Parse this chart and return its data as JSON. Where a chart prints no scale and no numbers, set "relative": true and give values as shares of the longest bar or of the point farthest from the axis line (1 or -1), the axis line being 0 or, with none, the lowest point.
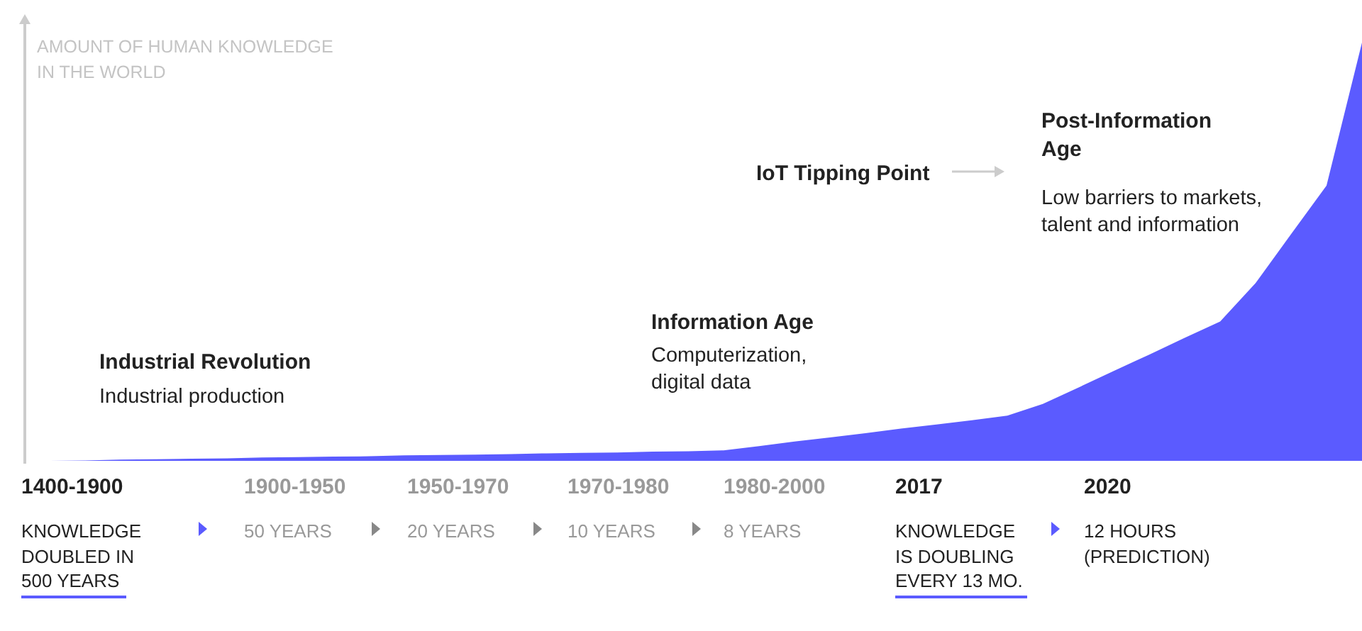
{
  "chart_data": {
    "type": "area",
    "relative": true,
    "ylabel": "AMOUNT OF HUMAN KNOWLEDGE IN THE WORLD",
    "color": "#5b5bff",
    "categories": [
      null,
      null,
      null,
      null,
      null,
      null,
      null,
      null,
      null,
      null,
      null,
      null,
      null,
      null,
      null,
      null,
      null,
      null,
      null,
      null,
      null,
      null,
      null,
      null,
      null,
      null,
      null,
      null,
      null,
      null,
      null,
      null,
      null,
      null,
      null,
      null,
      null,
      null
    ],
    "values": [
      0,
      0.001,
      0.003,
      0.004,
      0.005,
      0.006,
      0.008,
      0.009,
      0.01,
      0.011,
      0.013,
      0.014,
      0.015,
      0.016,
      0.018,
      0.019,
      0.02,
      0.022,
      0.023,
      0.025,
      0.035,
      0.046,
      0.056,
      0.066,
      0.077,
      0.087,
      0.097,
      0.108,
      0.136,
      0.175,
      0.215,
      0.254,
      0.294,
      0.333,
      0.425,
      0.542,
      0.658,
      1
    ],
    "annotations": [
      "Industrial Revolution",
      "Industrial production",
      "Information Age",
      "Computerization, digital data",
      "IoT Tipping Point",
      "Post-Information Age",
      "Low barriers to markets, talent and information",
      "1400-1900",
      "KNOWLEDGE DOUBLED IN 500 YEARS",
      "1900-1950",
      "50 YEARS",
      "1950-1970",
      "20 YEARS",
      "1970-1980",
      "10 YEARS",
      "1980-2000",
      "8 YEARS",
      "2017",
      "KNOWLEDGE IS DOUBLING EVERY 13 MO.",
      "2020",
      "12 HOURS (PREDICTION)"
    ]
  }
}
